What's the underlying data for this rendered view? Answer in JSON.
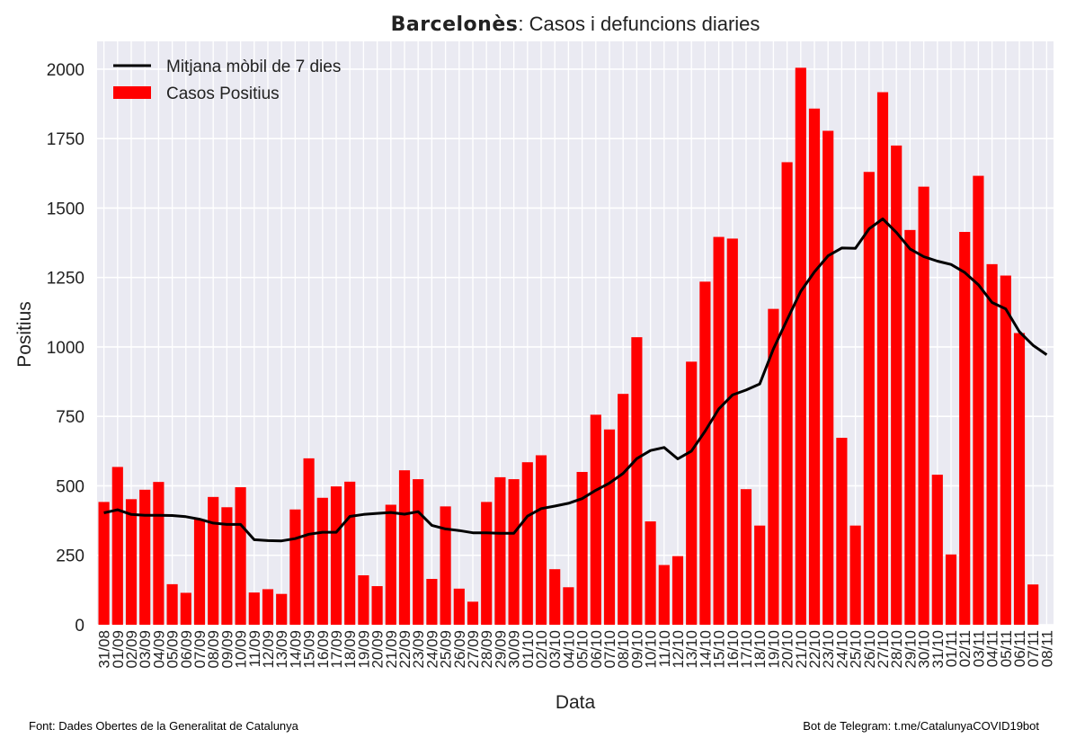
{
  "title_bold": "Barcelonès",
  "title_rest": ": Casos i defuncions diaries",
  "footer_left": "Font: Dades Obertes de la Generalitat de Catalunya",
  "footer_right": "Bot de Telegram: t.me/CatalunyaCOVID19bot",
  "colors": {
    "bars": "#ff0000",
    "line": "#000000",
    "plot_bg": "#eaeaf2",
    "grid": "#ffffff"
  },
  "chart_data": {
    "type": "bar",
    "xlabel": "Data",
    "ylabel": "Positius",
    "ylim": [
      0,
      2100
    ],
    "yticks": [
      0,
      250,
      500,
      750,
      1000,
      1250,
      1500,
      1750,
      2000
    ],
    "grid": true,
    "legend_position": "top-left",
    "categories": [
      "31/08",
      "01/09",
      "02/09",
      "03/09",
      "04/09",
      "05/09",
      "06/09",
      "07/09",
      "08/09",
      "09/09",
      "10/09",
      "11/09",
      "12/09",
      "13/09",
      "14/09",
      "15/09",
      "16/09",
      "17/09",
      "18/09",
      "19/09",
      "20/09",
      "21/09",
      "22/09",
      "23/09",
      "24/09",
      "25/09",
      "26/09",
      "27/09",
      "28/09",
      "29/09",
      "30/09",
      "01/10",
      "02/10",
      "03/10",
      "04/10",
      "05/10",
      "06/10",
      "07/10",
      "08/10",
      "09/10",
      "10/10",
      "11/10",
      "12/10",
      "13/10",
      "14/10",
      "15/10",
      "16/10",
      "17/10",
      "18/10",
      "19/10",
      "20/10",
      "21/10",
      "22/10",
      "23/10",
      "24/10",
      "25/10",
      "26/10",
      "27/10",
      "28/10",
      "29/10",
      "30/10",
      "31/10",
      "01/11",
      "02/11",
      "03/11",
      "04/11",
      "05/11",
      "06/11",
      "07/11",
      "08/11"
    ],
    "series": [
      {
        "name": "Casos Positius",
        "type": "bar",
        "values": [
          442,
          568,
          452,
          486,
          514,
          146,
          115,
          380,
          460,
          423,
          495,
          116,
          128,
          111,
          415,
          599,
          457,
          498,
          515,
          178,
          139,
          432,
          556,
          524,
          165,
          426,
          130,
          83,
          442,
          531,
          524,
          585,
          610,
          200,
          135,
          550,
          756,
          703,
          831,
          1035,
          372,
          215,
          247,
          947,
          1235,
          1396,
          1390,
          488,
          357,
          1137,
          1665,
          2005,
          1858,
          1778,
          673,
          357,
          1630,
          1917,
          1725,
          1421,
          1577,
          540,
          253,
          1414,
          1616,
          1298,
          1257,
          1050,
          145,
          null
        ]
      },
      {
        "name": "Mitjana mòbil de 7 dies",
        "type": "line",
        "values": [
          403,
          414,
          397,
          394,
          394,
          393,
          389,
          380,
          366,
          361,
          361,
          306,
          303,
          302,
          310,
          326,
          333,
          333,
          390,
          397,
          401,
          404,
          398,
          407,
          358,
          345,
          339,
          331,
          331,
          329,
          329,
          391,
          418,
          427,
          437,
          454,
          484,
          510,
          545,
          598,
          627,
          638,
          597,
          625,
          697,
          777,
          827,
          845,
          867,
          993,
          1098,
          1200,
          1270,
          1328,
          1356,
          1355,
          1425,
          1461,
          1412,
          1353,
          1325,
          1309,
          1297,
          1268,
          1224,
          1160,
          1137,
          1055,
          1006,
          972
        ]
      }
    ]
  }
}
